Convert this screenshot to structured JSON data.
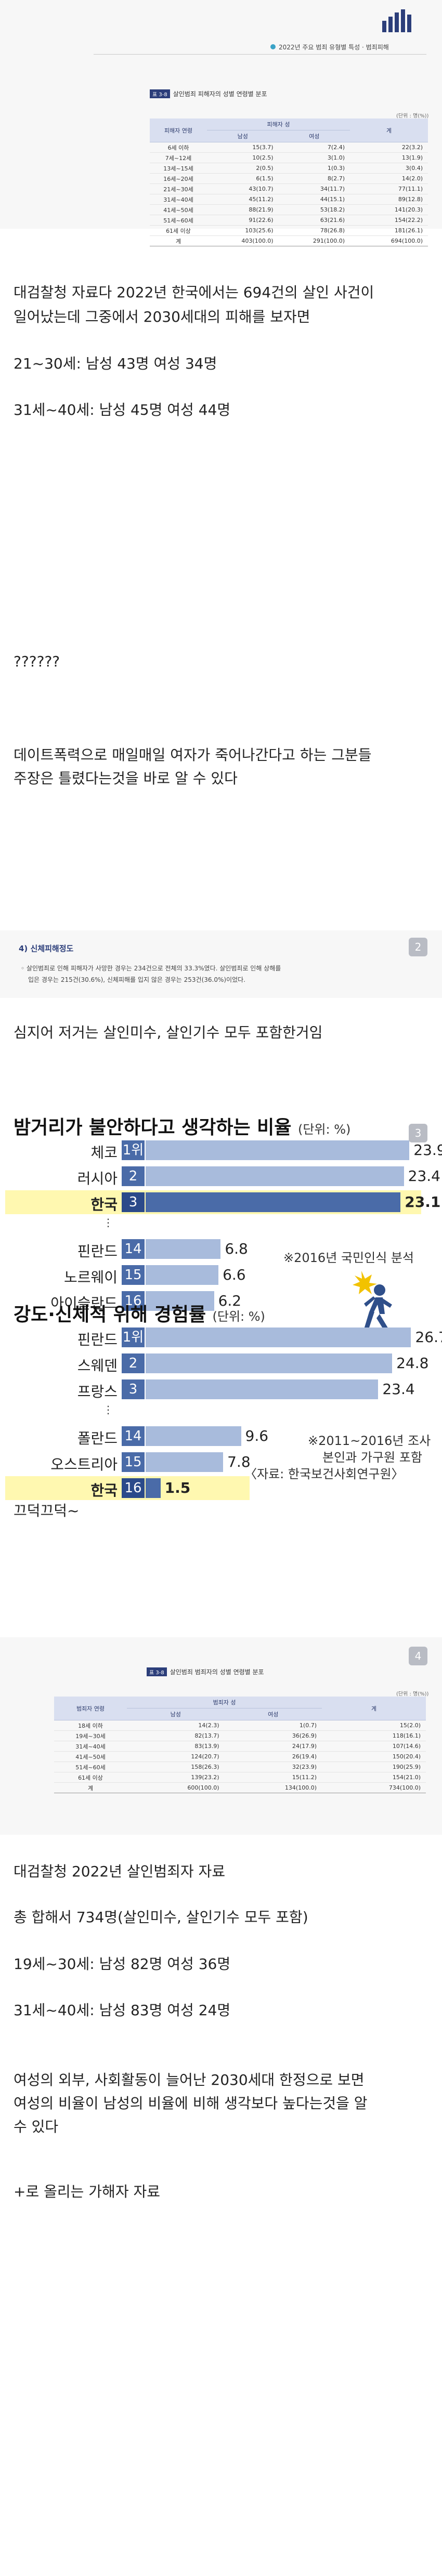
{
  "header": {
    "subtitle": "2022년 주요 범죄 유형별 특성 · 범죄피해"
  },
  "table1": {
    "tag": "표 3-8",
    "title": "살인범죄 피해자의 성별 연령별 분포",
    "unit": "(단위 : 명(%))",
    "col_age": "피해자 연령",
    "col_sex": "피해자 성",
    "col_male": "남성",
    "col_female": "여성",
    "col_total": "계",
    "rows": [
      {
        "age": "6세 이하",
        "m": "15(3.7)",
        "f": "7(2.4)",
        "t": "22(3.2)"
      },
      {
        "age": "7세~12세",
        "m": "10(2.5)",
        "f": "3(1.0)",
        "t": "13(1.9)"
      },
      {
        "age": "13세~15세",
        "m": "2(0.5)",
        "f": "1(0.3)",
        "t": "3(0.4)"
      },
      {
        "age": "16세~20세",
        "m": "6(1.5)",
        "f": "8(2.7)",
        "t": "14(2.0)"
      },
      {
        "age": "21세~30세",
        "m": "43(10.7)",
        "f": "34(11.7)",
        "t": "77(11.1)"
      },
      {
        "age": "31세~40세",
        "m": "45(11.2)",
        "f": "44(15.1)",
        "t": "89(12.8)"
      },
      {
        "age": "41세~50세",
        "m": "88(21.9)",
        "f": "53(18.2)",
        "t": "141(20.3)"
      },
      {
        "age": "51세~60세",
        "m": "91(22.6)",
        "f": "63(21.6)",
        "t": "154(22.2)"
      },
      {
        "age": "61세 이상",
        "m": "103(25.6)",
        "f": "78(26.8)",
        "t": "181(26.1)"
      },
      {
        "age": "계",
        "m": "403(100.0)",
        "f": "291(100.0)",
        "t": "694(100.0)"
      }
    ]
  },
  "post1": {
    "p1a": "대검찰청 자료다 2022년 한국에서는 694건의 살인 사건이",
    "p1b": "일어났는데 그중에서 2030세대의 피해를 보자면",
    "p2": "21~30세: 남성 43명 여성 34명",
    "p3": "31세~40세: 남성 45명 여성 44명",
    "p4": "??????",
    "p5a": "데이트폭력으로 매일매일 여자가 죽어나간다고 하는 그분들",
    "p5b": "주장은 틀렸다는것을 바로 알 수 있다"
  },
  "section2": {
    "heading": "4) 신체피해정도",
    "b1a": "살인범죄로 인해 피해자가 사망한 경우는 234건으로 전체의 33.3%였다. 살인범죄로 인해 상해를",
    "b1b": "입은 경우는 215건(30.6%), 신체피해를 입지 않은 경우는 253건(36.0%)이었다.",
    "badge": "2"
  },
  "post2": {
    "p1": "심지어 저거는 살인미수, 살인기수 모두 포함한거임"
  },
  "chart1": {
    "badge": "3",
    "title": "밤거리가 불안하다고 생각하는 비율",
    "unit": "(단위: %)",
    "note": "※2016년 국민인식 분석",
    "rows": [
      {
        "label": "체코",
        "rank": "1위",
        "value": 23.9,
        "vtext": "23.9"
      },
      {
        "label": "러시아",
        "rank": "2",
        "value": 23.4,
        "vtext": "23.4"
      },
      {
        "label": "한국",
        "rank": "3",
        "value": 23.1,
        "vtext": "23.1"
      },
      {
        "label": "핀란드",
        "rank": "14",
        "value": 6.8,
        "vtext": "6.8"
      },
      {
        "label": "노르웨이",
        "rank": "15",
        "value": 6.6,
        "vtext": "6.6"
      },
      {
        "label": "아이슬란드",
        "rank": "16",
        "value": 6.2,
        "vtext": "6.2"
      }
    ]
  },
  "chart2": {
    "title": "강도·신체적 위해 경험률",
    "unit": "(단위: %)",
    "note1": "※2011~2016년 조사",
    "note2": "본인과 가구원 포함",
    "source": "〈자료: 한국보건사회연구원〉",
    "rows": [
      {
        "label": "핀란드",
        "rank": "1위",
        "value": 26.7,
        "vtext": "26.7"
      },
      {
        "label": "스웨덴",
        "rank": "2",
        "value": 24.8,
        "vtext": "24.8"
      },
      {
        "label": "프랑스",
        "rank": "3",
        "value": 23.4,
        "vtext": "23.4"
      },
      {
        "label": "폴란드",
        "rank": "14",
        "value": 9.6,
        "vtext": "9.6"
      },
      {
        "label": "오스트리아",
        "rank": "15",
        "value": 7.8,
        "vtext": "7.8"
      },
      {
        "label": "한국",
        "rank": "16",
        "value": 1.5,
        "vtext": "1.5"
      }
    ]
  },
  "chart_data": [
    {
      "type": "bar",
      "title": "밤거리가 불안하다고 생각하는 비율",
      "categories": [
        "체코",
        "러시아",
        "한국",
        "핀란드",
        "노르웨이",
        "아이슬란드"
      ],
      "values": [
        23.9,
        23.4,
        23.1,
        6.8,
        6.6,
        6.2
      ]
    },
    {
      "type": "bar",
      "title": "강도·신체적 위해 경험률",
      "categories": [
        "핀란드",
        "스웨덴",
        "프랑스",
        "폴란드",
        "오스트리아",
        "한국"
      ],
      "values": [
        26.7,
        24.8,
        23.4,
        9.6,
        7.8,
        1.5
      ]
    }
  ],
  "post3": {
    "p1": "끄덕끄덕~"
  },
  "table2": {
    "badge": "4",
    "tag": "표 3-8",
    "title": "살인범죄 범죄자의 성별 연령별 분포",
    "unit": "(단위 : 명(%))",
    "col_age": "범죄자 연령",
    "col_sex": "범죄자 성",
    "col_male": "남성",
    "col_female": "여성",
    "col_total": "계",
    "rows": [
      {
        "age": "18세 이하",
        "m": "14(2.3)",
        "f": "1(0.7)",
        "t": "15(2.0)"
      },
      {
        "age": "19세~30세",
        "m": "82(13.7)",
        "f": "36(26.9)",
        "t": "118(16.1)"
      },
      {
        "age": "31세~40세",
        "m": "83(13.9)",
        "f": "24(17.9)",
        "t": "107(14.6)"
      },
      {
        "age": "41세~50세",
        "m": "124(20.7)",
        "f": "26(19.4)",
        "t": "150(20.4)"
      },
      {
        "age": "51세~60세",
        "m": "158(26.3)",
        "f": "32(23.9)",
        "t": "190(25.9)"
      },
      {
        "age": "61세 이상",
        "m": "139(23.2)",
        "f": "15(11.2)",
        "t": "154(21.0)"
      },
      {
        "age": "계",
        "m": "600(100.0)",
        "f": "134(100.0)",
        "t": "734(100.0)"
      }
    ]
  },
  "post4": {
    "p1": "대검찰청 2022년 살인범죄자 자료",
    "p2": "총 합해서 734명(살인미수, 살인기수 모두 포함)",
    "p3": "19세~30세: 남성 82명 여성 36명",
    "p4": "31세~40세: 남성 83명 여성 24명",
    "p5a": "여성의 외부, 사회활동이 늘어난 2030세대 한정으로 보면",
    "p5b": "여성의 비율이 남성의 비율에 비해 생각보다 높다는것을 알",
    "p5c": "수 있다",
    "p6": "+로 올리는 가해자 자료"
  }
}
